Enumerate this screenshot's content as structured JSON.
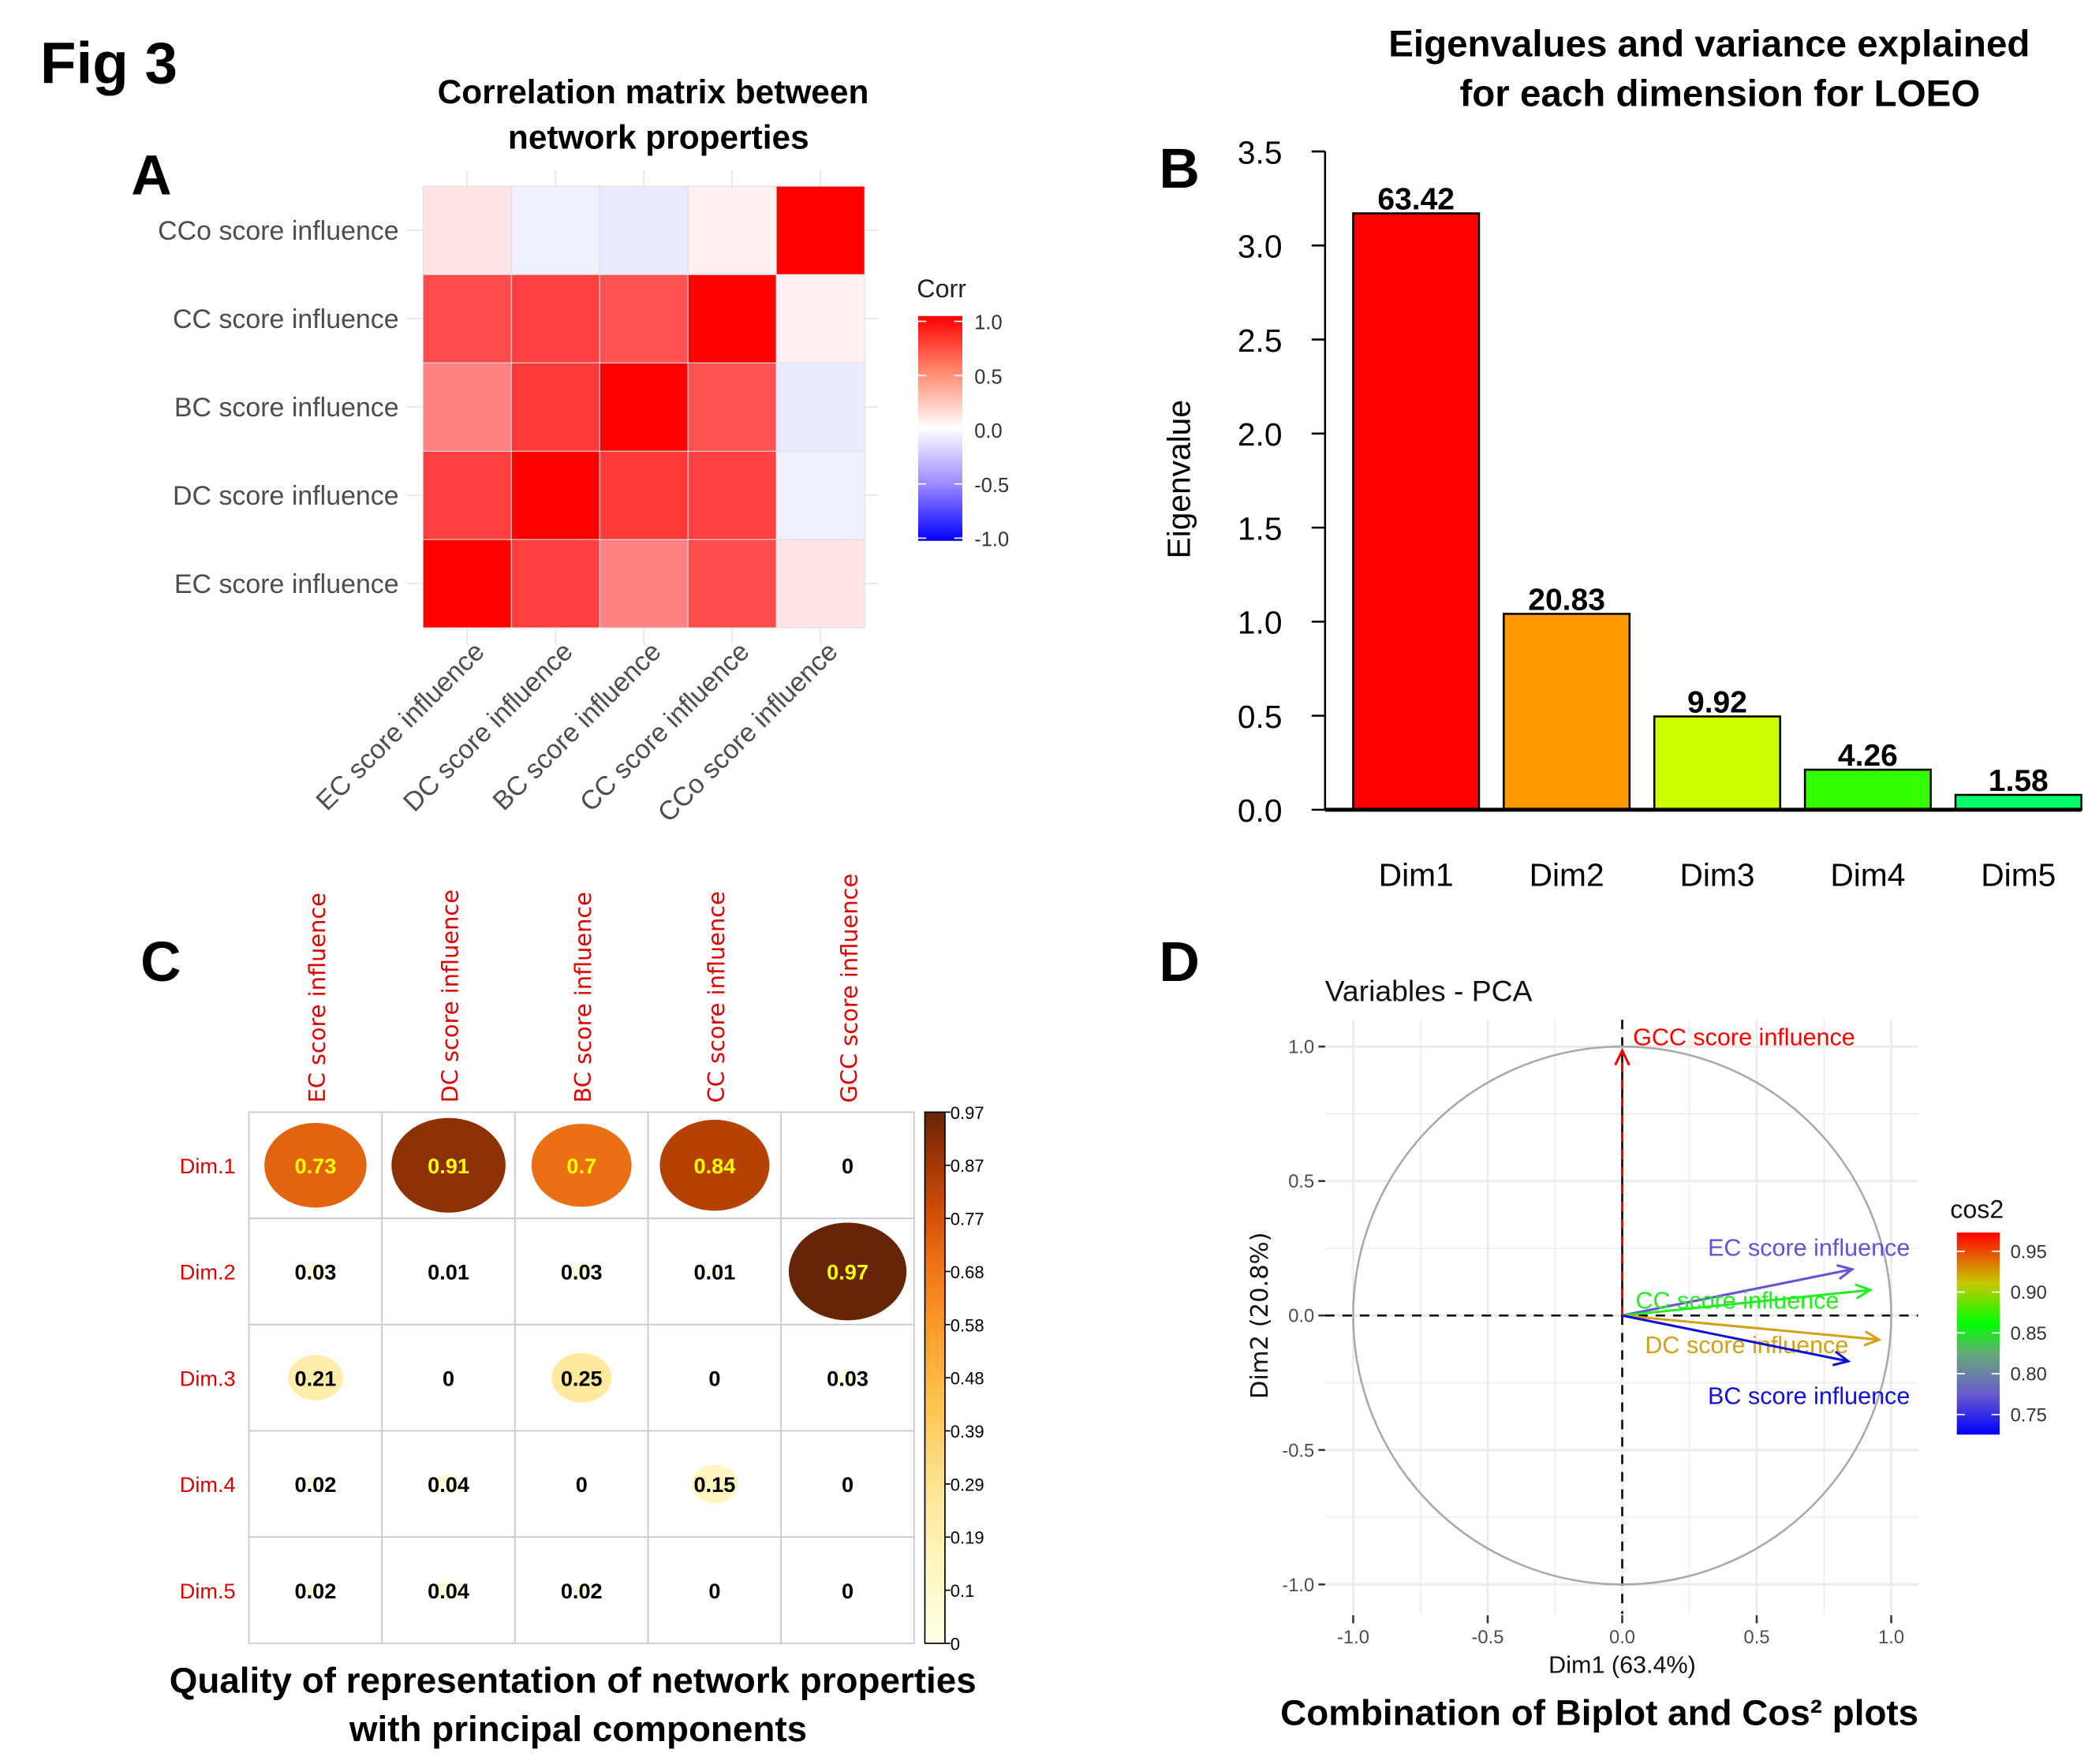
{
  "figure_label": "Fig 3",
  "chart_data": [
    {
      "panel": "A",
      "type": "heatmap",
      "title": "Correlation matrix between network properties",
      "title_lines": [
        "Correlation matrix between",
        "network properties"
      ],
      "x_labels": [
        "EC score influence",
        "DC score influence",
        "BC score influence",
        "CC score influence",
        "CCo score influence"
      ],
      "y_labels": [
        "EC score influence",
        "DC score influence",
        "BC score influence",
        "CC score influence",
        "CCo score influence"
      ],
      "values": [
        [
          1.0,
          0.73,
          0.45,
          0.68,
          0.08
        ],
        [
          0.73,
          1.0,
          0.75,
          0.72,
          -0.06
        ],
        [
          0.45,
          0.75,
          1.0,
          0.65,
          -0.08
        ],
        [
          0.68,
          0.72,
          0.65,
          1.0,
          0.04
        ],
        [
          0.08,
          -0.06,
          -0.08,
          0.04,
          1.0
        ]
      ],
      "legend": {
        "title": "Corr",
        "ticks": [
          "1.0",
          "0.5",
          "0.0",
          "-0.5",
          "-1.0"
        ],
        "range": [
          -1,
          1
        ],
        "colors": {
          "low": "#0000FF",
          "mid": "#FFFFFF",
          "high": "#FF0000"
        },
        "placement": "right"
      }
    },
    {
      "panel": "B",
      "type": "bar",
      "title": "Eigenvalues and variance explained for each dimension for LOEO",
      "title_lines": [
        "Eigenvalues and variance explained",
        "for each dimension for LOEO"
      ],
      "categories": [
        "Dim1",
        "Dim2",
        "Dim3",
        "Dim4",
        "Dim5"
      ],
      "values": [
        3.171,
        1.0415,
        0.496,
        0.213,
        0.079
      ],
      "data_labels": [
        "63.42",
        "20.83",
        "9.92",
        "4.26",
        "1.58"
      ],
      "colors": [
        "#FF0000",
        "#FF9900",
        "#CCFF00",
        "#33FF00",
        "#00FF66"
      ],
      "xlabel": "",
      "ylabel": "Eigenvalue",
      "ylim": [
        0,
        3.5
      ],
      "yticks": [
        "0.0",
        "0.5",
        "1.0",
        "1.5",
        "2.0",
        "2.5",
        "3.0",
        "3.5"
      ],
      "grid": false
    },
    {
      "panel": "C",
      "type": "heatmap",
      "subtype": "corrplot-circle",
      "title": "Quality of representation of network properties with principal components",
      "title_lines": [
        "Quality of representation of network properties",
        "with principal components"
      ],
      "columns": [
        "EC score influence",
        "DC score influence",
        "BC score influence",
        "CC score influence",
        "GCC score influence"
      ],
      "rows": [
        "Dim.1",
        "Dim.2",
        "Dim.3",
        "Dim.4",
        "Dim.5"
      ],
      "values": [
        [
          0.73,
          0.91,
          0.7,
          0.84,
          0
        ],
        [
          0.03,
          0.01,
          0.03,
          0.01,
          0.97
        ],
        [
          0.21,
          0,
          0.25,
          0,
          0.03
        ],
        [
          0.02,
          0.04,
          0,
          0.15,
          0
        ],
        [
          0.02,
          0.04,
          0.02,
          0,
          0
        ]
      ],
      "legend": {
        "ticks": [
          "0.97",
          "0.87",
          "0.77",
          "0.68",
          "0.58",
          "0.48",
          "0.39",
          "0.29",
          "0.19",
          "0.1",
          "0"
        ],
        "range": [
          0,
          0.97
        ],
        "colors": [
          "#FFFFE5",
          "#FEE391",
          "#FEC44F",
          "#FE9929",
          "#EC7014",
          "#CC4C02",
          "#993404",
          "#662506"
        ],
        "placement": "right"
      }
    },
    {
      "panel": "D",
      "type": "scatter",
      "subtype": "pca-variable-circle",
      "title": "Variables - PCA",
      "caption": "Combination of Biplot and Cos² plots",
      "xlabel": "Dim1 (63.4%)",
      "ylabel": "Dim2 (20.8%)",
      "xlim": [
        -1.0,
        1.0
      ],
      "ylim": [
        -1.0,
        1.0
      ],
      "xticks": [
        "-1.0",
        "-0.5",
        "0.0",
        "0.5",
        "1.0"
      ],
      "yticks": [
        "-1.0",
        "-0.5",
        "0.0",
        "0.5",
        "1.0"
      ],
      "grid": true,
      "series": [
        {
          "name": "GCC score influence",
          "x": 0.0,
          "y": 0.985,
          "cos2": 0.97,
          "color": "#FF0000"
        },
        {
          "name": "EC score influence",
          "x": 0.855,
          "y": 0.172,
          "cos2": 0.76,
          "color": "#6A4FDB"
        },
        {
          "name": "CC score influence",
          "x": 0.922,
          "y": 0.095,
          "cos2": 0.85,
          "color": "#22EE22"
        },
        {
          "name": "DC score influence",
          "x": 0.955,
          "y": -0.09,
          "cos2": 0.92,
          "color": "#D4A017"
        },
        {
          "name": "BC score influence",
          "x": 0.84,
          "y": -0.17,
          "cos2": 0.73,
          "color": "#1010DD"
        }
      ],
      "legend": {
        "title": "cos2",
        "ticks": [
          "0.95",
          "0.90",
          "0.85",
          "0.80",
          "0.75"
        ],
        "range": [
          0.73,
          0.97
        ],
        "colors": [
          "#0000FF",
          "#777799",
          "#00FF00",
          "#C8C800",
          "#FF0000"
        ],
        "placement": "right"
      }
    }
  ],
  "panel_labels": [
    "A",
    "B",
    "C",
    "D"
  ]
}
